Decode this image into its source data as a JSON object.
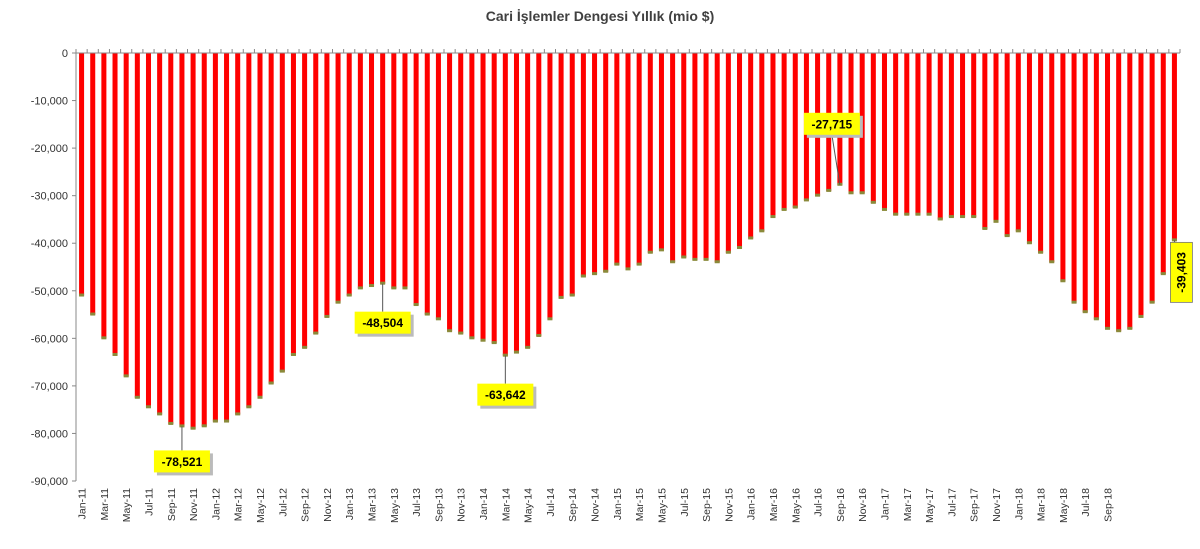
{
  "chart_data": {
    "type": "bar",
    "title": "Cari İşlemler Dengesi Yıllık (mio $)",
    "xlabel": "",
    "ylabel": "",
    "ylim": [
      -90000,
      0
    ],
    "yticks": [
      "0",
      "-10,000",
      "-20,000",
      "-30,000",
      "-40,000",
      "-50,000",
      "-60,000",
      "-70,000",
      "-80,000",
      "-90,000"
    ],
    "tick_labels": [
      "Jan-11",
      "Mar-11",
      "May-11",
      "Jul-11",
      "Sep-11",
      "Nov-11",
      "Jan-12",
      "Mar-12",
      "May-12",
      "Jul-12",
      "Sep-12",
      "Nov-12",
      "Jan-13",
      "Mar-13",
      "May-13",
      "Jul-13",
      "Sep-13",
      "Nov-13",
      "Jan-14",
      "Mar-14",
      "May-14",
      "Jul-14",
      "Sep-14",
      "Nov-14",
      "Jan-15",
      "Mar-15",
      "May-15",
      "Jul-15",
      "Sep-15",
      "Nov-15",
      "Jan-16",
      "Mar-16",
      "May-16",
      "Jul-16",
      "Sep-16",
      "Nov-16",
      "Jan-17",
      "Mar-17",
      "May-17",
      "Jul-17",
      "Sep-17",
      "Nov-17",
      "Jan-18",
      "Mar-18",
      "May-18",
      "Jul-18",
      "Sep-18"
    ],
    "start_label": "Jan-11",
    "values": [
      -51000,
      -55000,
      -60000,
      -63500,
      -68000,
      -72500,
      -74500,
      -76000,
      -78000,
      -78521,
      -79000,
      -78500,
      -77500,
      -77500,
      -76000,
      -74500,
      -72500,
      -69500,
      -67000,
      -63500,
      -62000,
      -59000,
      -55500,
      -52500,
      -51000,
      -49500,
      -49000,
      -48504,
      -49500,
      -49500,
      -53000,
      -55000,
      -56000,
      -58500,
      -59000,
      -60000,
      -60500,
      -61000,
      -63642,
      -63000,
      -62000,
      -59500,
      -56000,
      -51500,
      -51000,
      -47000,
      -46500,
      -46000,
      -44500,
      -45500,
      -44500,
      -42000,
      -41500,
      -44000,
      -43000,
      -43500,
      -43500,
      -44000,
      -42000,
      -41000,
      -39000,
      -37500,
      -34500,
      -33000,
      -32500,
      -31000,
      -30000,
      -29000,
      -27715,
      -29500,
      -29500,
      -31500,
      -33000,
      -34000,
      -34000,
      -34000,
      -34000,
      -35000,
      -34500,
      -34500,
      -34500,
      -37000,
      -35500,
      -38500,
      -37500,
      -40000,
      -42000,
      -44000,
      -48000,
      -52500,
      -54500,
      -56000,
      -58000,
      -58500,
      -58000,
      -55500,
      -52500,
      -46500,
      -39403
    ],
    "bar_color": "#ff0000",
    "annotations": [
      {
        "label": "-78,521",
        "index": 9
      },
      {
        "label": "-48,504",
        "index": 27
      },
      {
        "label": "-63,642",
        "index": 38
      },
      {
        "label": "-27,715",
        "index": 68
      },
      {
        "label": "-39,403",
        "index": 98,
        "rotated": true
      }
    ],
    "annotation_color": "#ffff00",
    "grid": false
  }
}
